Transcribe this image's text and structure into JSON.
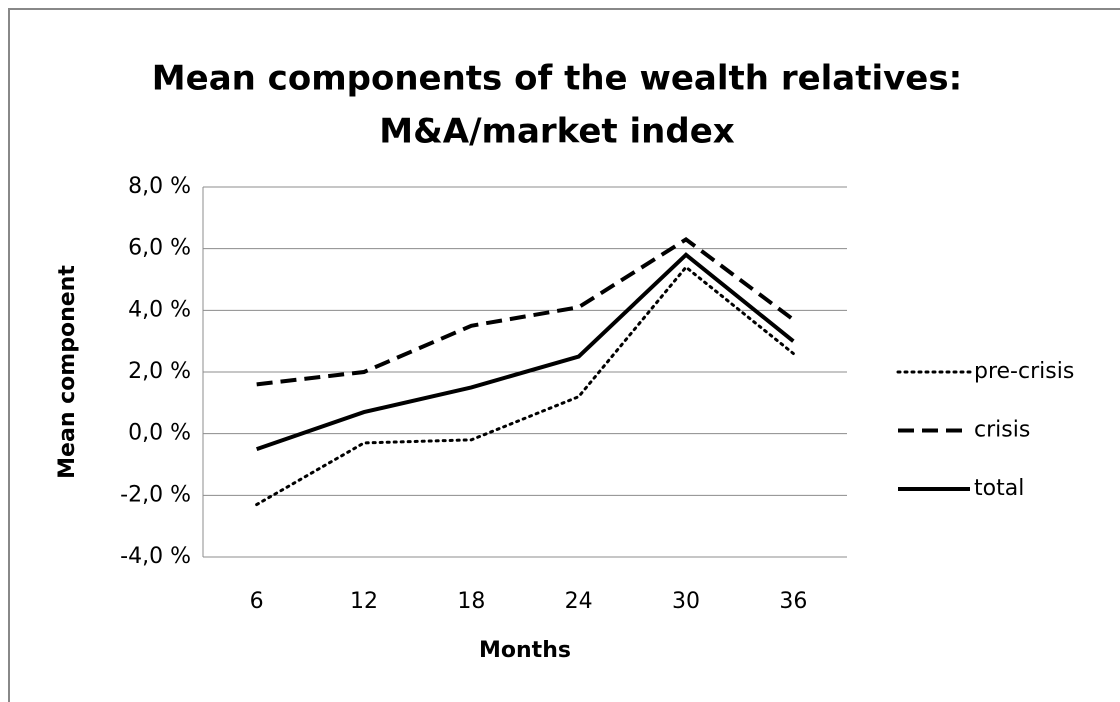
{
  "chart_data": {
    "type": "line",
    "title": [
      "Mean components of the wealth relatives:",
      "M&A/market index"
    ],
    "x_label": "Months",
    "y_label": "Mean component",
    "categories": [
      "6",
      "12",
      "18",
      "24",
      "30",
      "36"
    ],
    "series": [
      {
        "name": "pre-crisis",
        "color": "#000000",
        "dash": "dotted",
        "values": [
          -2.3,
          -0.3,
          -0.2,
          1.2,
          5.4,
          2.6
        ]
      },
      {
        "name": "crisis",
        "color": "#000000",
        "dash": "dashed",
        "values": [
          1.6,
          2.0,
          3.5,
          4.1,
          6.3,
          3.7
        ]
      },
      {
        "name": "total",
        "color": "#000000",
        "dash": "solid",
        "values": [
          -0.5,
          0.7,
          1.5,
          2.5,
          5.8,
          3.0
        ]
      }
    ],
    "ylim": [
      -4,
      8
    ],
    "yticks": [
      {
        "value": -4,
        "label": "-4,0 %"
      },
      {
        "value": -2,
        "label": "-2,0 %"
      },
      {
        "value": 0,
        "label": "0,0 %"
      },
      {
        "value": 2,
        "label": "2,0 %"
      },
      {
        "value": 4,
        "label": "4,0 %"
      },
      {
        "value": 6,
        "label": "6,0 %"
      },
      {
        "value": 8,
        "label": "8,0 %"
      }
    ],
    "grid": true,
    "legend": "right"
  }
}
